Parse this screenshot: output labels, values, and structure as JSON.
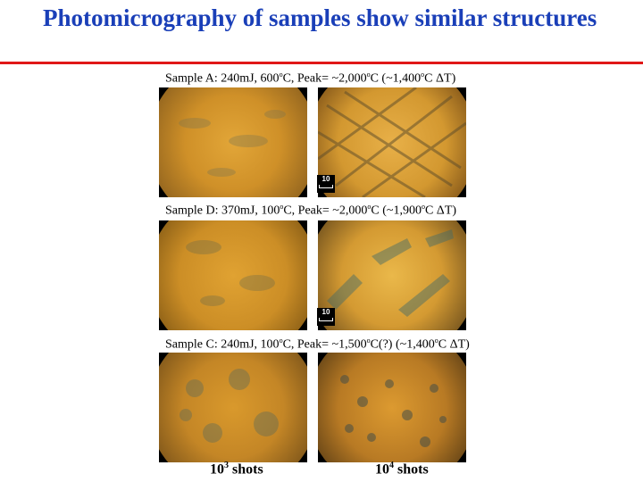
{
  "slide": {
    "title": "Photomicrography of samples show similar structures"
  },
  "rows": [
    {
      "caption_prefix": "Sample A: 240mJ, 600",
      "caption_mid1": "C, Peak= ~2,000",
      "caption_mid2": "C (~1,400",
      "caption_end": "C ",
      "delta": "Δ",
      "caption_tail": "T)"
    },
    {
      "caption_prefix": "Sample D: 370mJ, 100",
      "caption_mid1": "C, Peak= ~2,000",
      "caption_mid2": "C (~1,900",
      "caption_end": "C ",
      "delta": "Δ",
      "caption_tail": "T)"
    },
    {
      "caption_prefix": "Sample C: 240mJ, 100",
      "caption_mid1": "C, Peak= ~1,500",
      "caption_mid2": "C(?) (~1,400",
      "caption_end": "C ",
      "delta": "Δ",
      "caption_tail": "T)"
    }
  ],
  "degree_symbol": "o",
  "scale_label": "10",
  "columns": [
    {
      "base": "10",
      "exp": "3",
      "unit": "shots"
    },
    {
      "base": "10",
      "exp": "4",
      "unit": "shots"
    }
  ],
  "colors": {
    "title": "#1a3fb8",
    "rule": "#e01818",
    "sample_orange": "#d9982a",
    "sample_dark": "#5a5a3a"
  }
}
